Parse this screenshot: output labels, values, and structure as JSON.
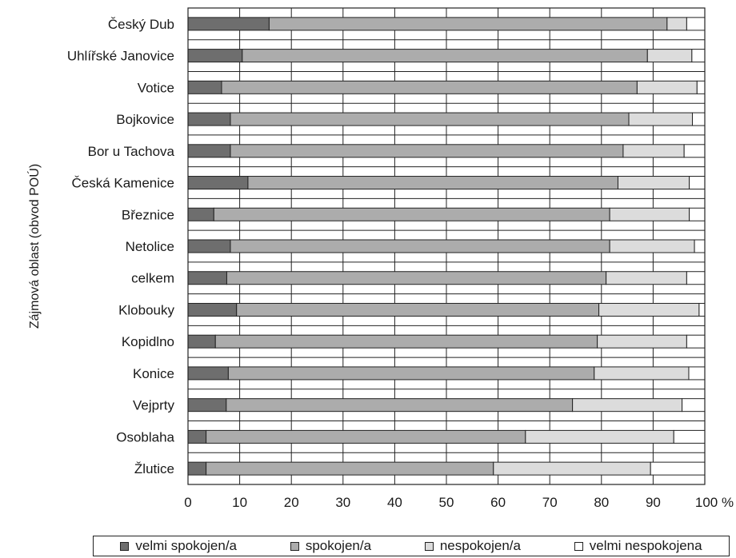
{
  "chart_data": {
    "type": "bar",
    "orientation": "horizontal",
    "stacked": true,
    "ylabel": "Zájmová oblast (obvod POÚ)",
    "x_unit": "%",
    "xlim": [
      0,
      100
    ],
    "x_ticks": [
      0,
      10,
      20,
      30,
      40,
      50,
      60,
      70,
      80,
      90,
      100
    ],
    "grid": true,
    "legend_position": "bottom",
    "categories": [
      "Český Dub",
      "Uhlířské Janovice",
      "Votice",
      "Bojkovice",
      "Bor u Tachova",
      "Česká Kamenice",
      "Březnice",
      "Netolice",
      "celkem",
      "Klobouky",
      "Kopidlno",
      "Konice",
      "Vejprty",
      "Osoblaha",
      "Žlutice"
    ],
    "series": [
      {
        "name": "velmi spokojen/a",
        "color": "#6e6e6e",
        "values": [
          15.7,
          10.5,
          6.5,
          8.2,
          8.2,
          11.6,
          5.0,
          8.2,
          7.5,
          9.4,
          5.3,
          7.8,
          7.4,
          3.5,
          3.5
        ]
      },
      {
        "name": "spokojen/a",
        "color": "#acacac",
        "values": [
          77.0,
          78.4,
          80.4,
          77.1,
          76.0,
          71.6,
          76.6,
          73.4,
          73.4,
          70.1,
          73.9,
          70.8,
          67.0,
          61.8,
          55.6
        ]
      },
      {
        "name": "nespokojen/a",
        "color": "#dcdcdc",
        "values": [
          3.8,
          8.6,
          11.6,
          12.3,
          11.8,
          13.8,
          15.4,
          16.4,
          15.6,
          19.4,
          17.3,
          18.3,
          21.2,
          28.7,
          30.4
        ]
      },
      {
        "name": "velmi nespokojena",
        "color": "#ffffff",
        "values": [
          3.5,
          2.5,
          1.5,
          2.4,
          4.0,
          3.0,
          3.0,
          2.0,
          3.5,
          1.1,
          3.5,
          3.1,
          4.4,
          6.0,
          10.5
        ]
      }
    ]
  }
}
